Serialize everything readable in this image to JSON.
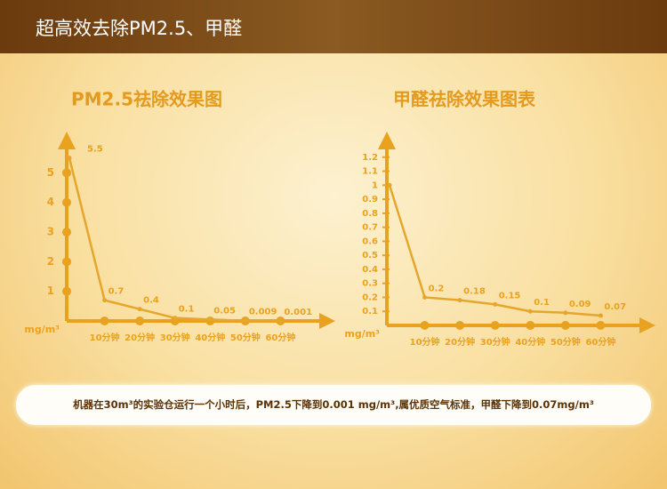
{
  "header": {
    "title": "超高效去除PM2.5、甲醛"
  },
  "chart_data": [
    {
      "type": "line",
      "title": "PM2.5祛除效果图",
      "y_label": "mg/m³",
      "x": [
        0,
        10,
        20,
        30,
        40,
        50,
        60
      ],
      "series": [
        {
          "color": "#e5a62c",
          "values": [
            5.5,
            0.7,
            0.4,
            0.1,
            0.05,
            0.009,
            0.001
          ],
          "value_labels": [
            "5.5",
            "0.7",
            "0.4",
            "0.1",
            "0.05",
            "0.009",
            "0.001"
          ]
        }
      ],
      "xlim": [
        0,
        70
      ],
      "xticks": [
        {
          "value": 10,
          "label": "10分钟"
        },
        {
          "value": 20,
          "label": "20分钟"
        },
        {
          "value": 30,
          "label": "30分钟"
        },
        {
          "value": 40,
          "label": "40分钟"
        },
        {
          "value": 50,
          "label": "50分钟"
        },
        {
          "value": 60,
          "label": "60分钟"
        }
      ],
      "ylim": [
        0,
        6
      ],
      "yticks": [
        1,
        2,
        3,
        4,
        5
      ]
    },
    {
      "type": "line",
      "title": "甲醛祛除效果图表",
      "y_label": "mg/m³",
      "x": [
        0,
        10,
        20,
        30,
        40,
        50,
        60
      ],
      "series": [
        {
          "color": "#e5a62c",
          "values": [
            1,
            0.2,
            0.18,
            0.15,
            0.1,
            0.09,
            0.07
          ],
          "value_labels": [
            null,
            "0.2",
            "0.18",
            "0.15",
            "0.1",
            "0.09",
            "0.07"
          ]
        }
      ],
      "xlim": [
        0,
        70
      ],
      "xticks": [
        {
          "value": 10,
          "label": "10分钟"
        },
        {
          "value": 20,
          "label": "20分钟"
        },
        {
          "value": 30,
          "label": "30分钟"
        },
        {
          "value": 40,
          "label": "40分钟"
        },
        {
          "value": 50,
          "label": "50分钟"
        },
        {
          "value": 60,
          "label": "60分钟"
        }
      ],
      "ylim": [
        0,
        1.3
      ],
      "yticks": [
        0.1,
        0.2,
        0.3,
        0.4,
        0.5,
        0.6,
        0.7,
        0.8,
        0.9,
        1,
        1.1,
        1.2
      ]
    }
  ],
  "caption": "机器在30m³的实验仓运行一个小时后，PM2.5下降到0.001 mg/m³,属优质空气标准，甲醛下降到0.07mg/m³"
}
